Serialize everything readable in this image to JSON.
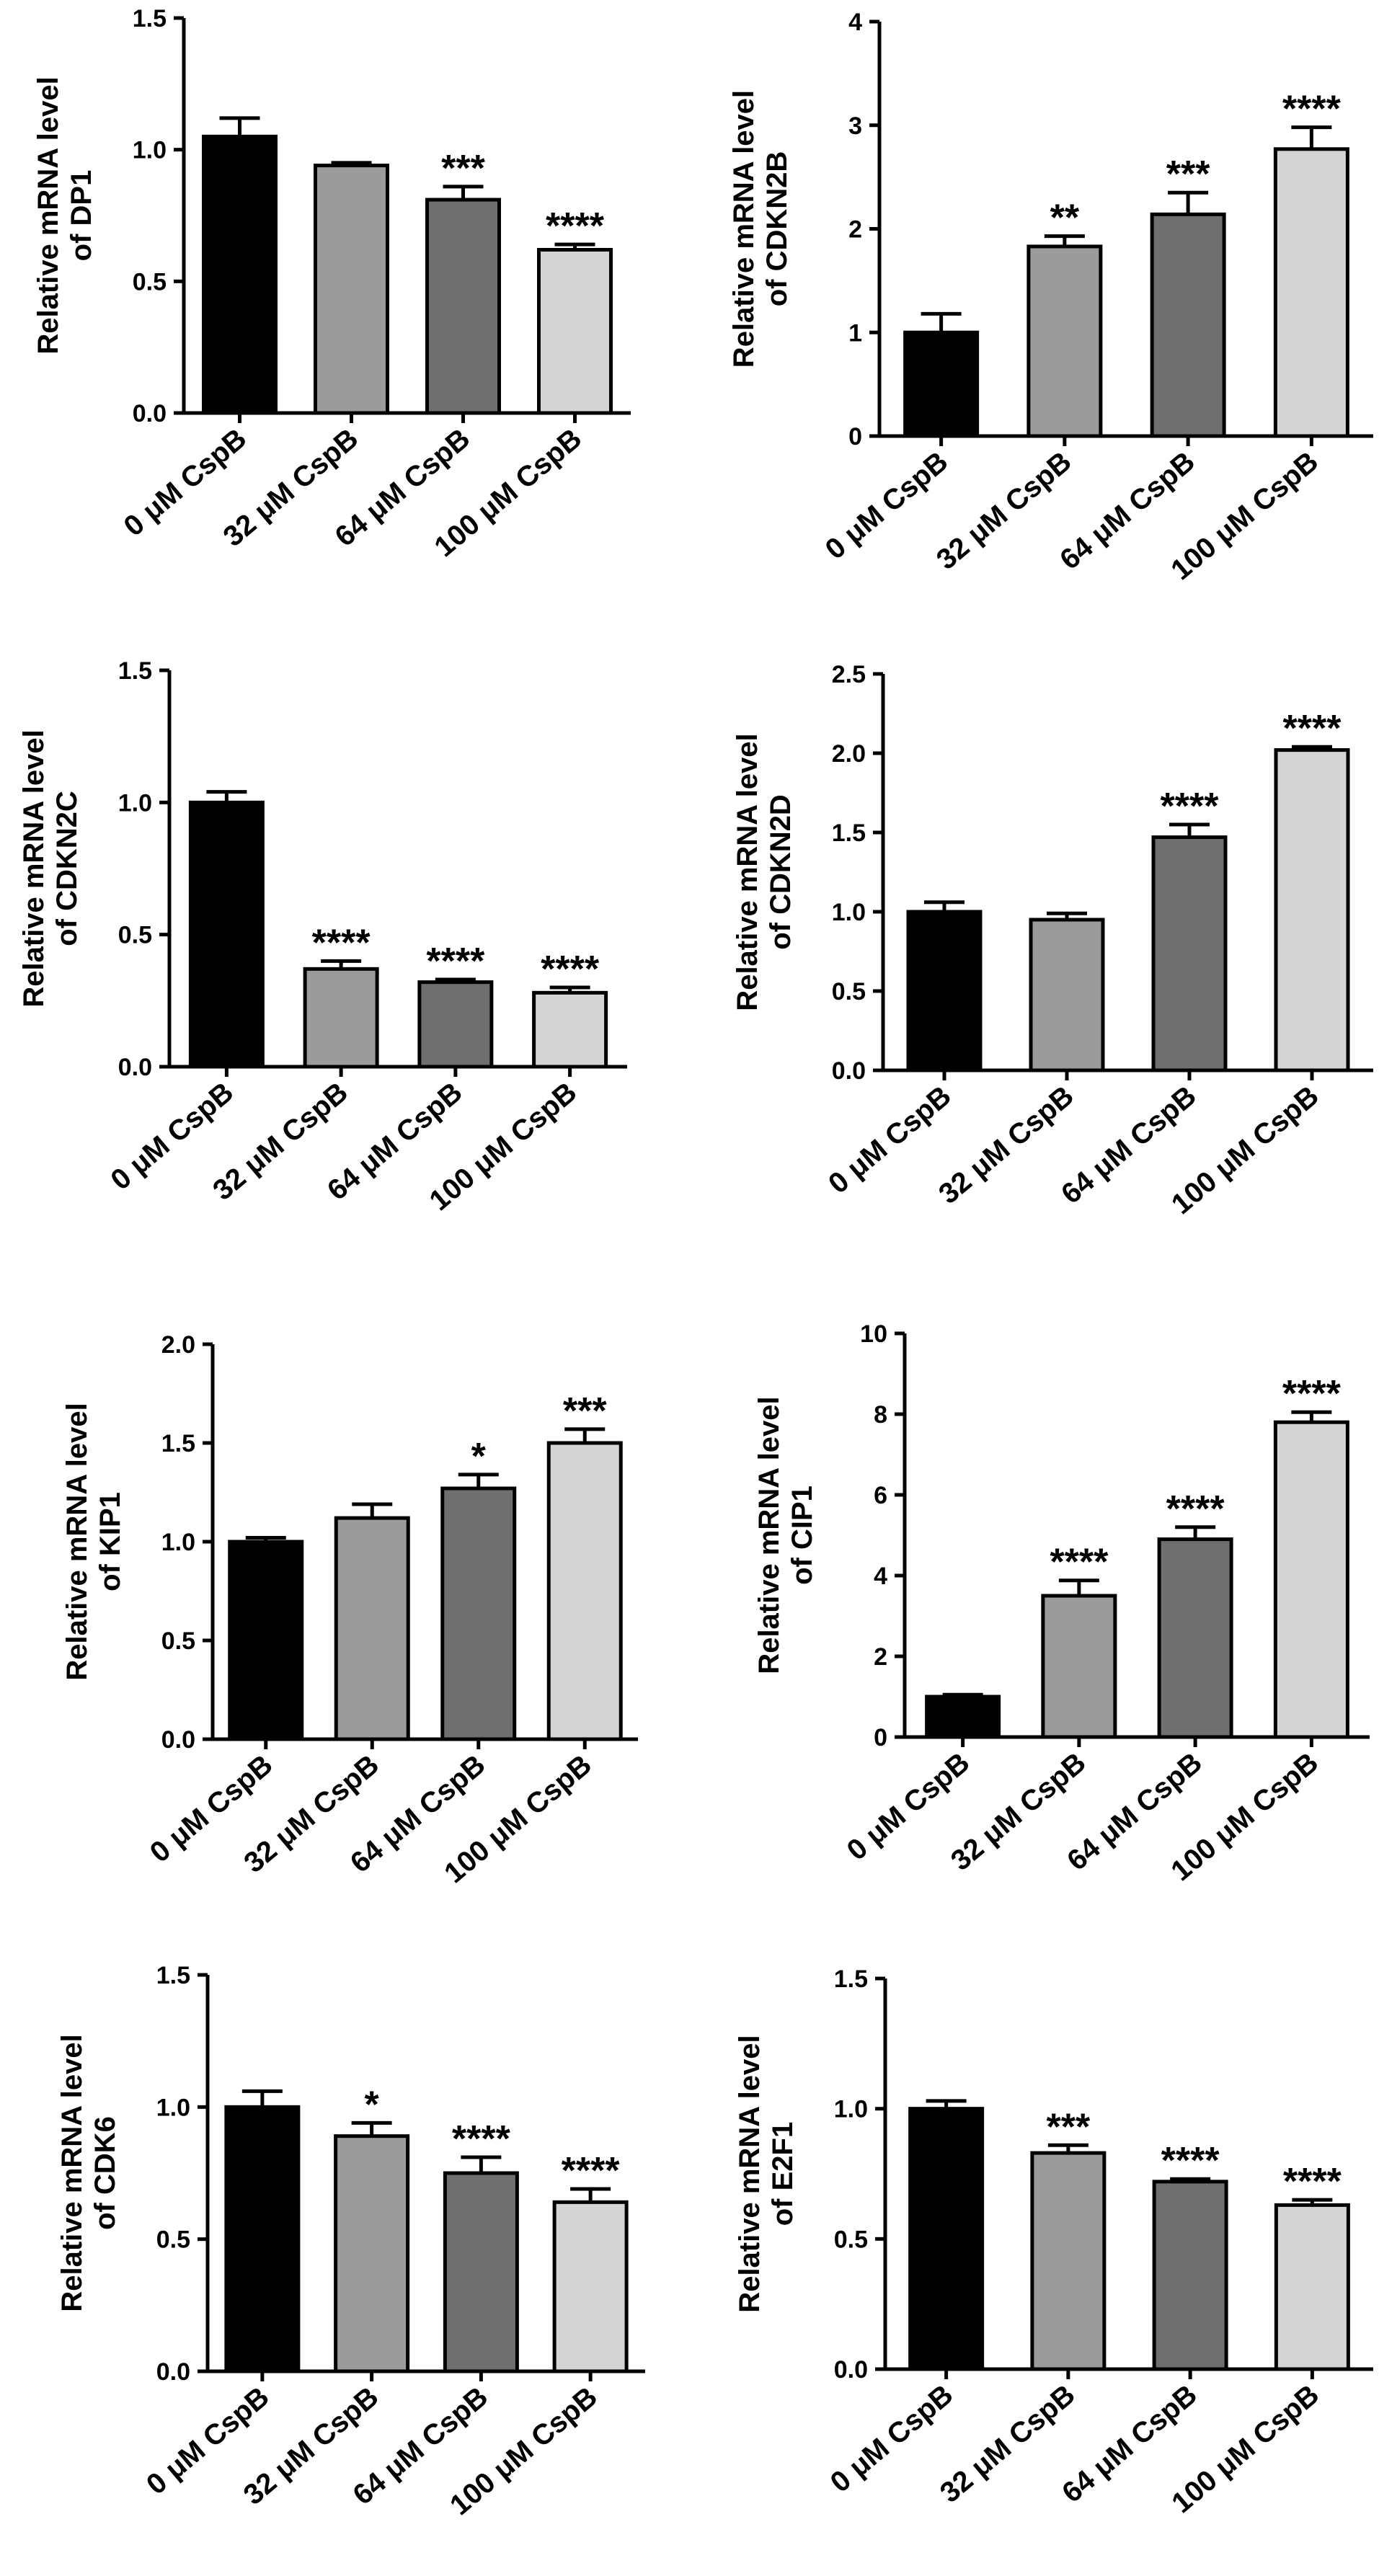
{
  "figure": {
    "panels": 8
  },
  "chart_data": [
    {
      "type": "bar",
      "title": "",
      "xlabel": "",
      "ylabel": [
        "Relative mRNA level",
        "of DP1"
      ],
      "categories": [
        "0 μM CspB",
        "32 μM CspB",
        "64 μM CspB",
        "100 μM CspB"
      ],
      "values": [
        1.05,
        0.94,
        0.81,
        0.62
      ],
      "errors": [
        0.07,
        0.01,
        0.05,
        0.02
      ],
      "significance": [
        "",
        "",
        "***",
        "****"
      ],
      "yticks": [
        "0.0",
        "0.5",
        "1.0",
        "1.5"
      ],
      "ylim": [
        0,
        1.5
      ],
      "colors": [
        "#000000",
        "#9b9b9b",
        "#6f6f6f",
        "#d4d4d4"
      ]
    },
    {
      "type": "bar",
      "title": "",
      "xlabel": "",
      "ylabel": [
        "Relative mRNA level",
        "of CDKN2B"
      ],
      "categories": [
        "0 μM CspB",
        "32 μM CspB",
        "64 μM CspB",
        "100 μM CspB"
      ],
      "values": [
        1.0,
        1.83,
        2.14,
        2.77
      ],
      "errors": [
        0.18,
        0.1,
        0.21,
        0.21
      ],
      "significance": [
        "",
        "**",
        "***",
        "****"
      ],
      "yticks": [
        "0",
        "1",
        "2",
        "3",
        "4"
      ],
      "ylim": [
        0,
        4
      ],
      "colors": [
        "#000000",
        "#9b9b9b",
        "#6f6f6f",
        "#d4d4d4"
      ]
    },
    {
      "type": "bar",
      "title": "",
      "xlabel": "",
      "ylabel": [
        "Relative mRNA level",
        "of CDKN2C"
      ],
      "categories": [
        "0 μM CspB",
        "32 μM CspB",
        "64 μM CspB",
        "100 μM CspB"
      ],
      "values": [
        1.0,
        0.37,
        0.32,
        0.28
      ],
      "errors": [
        0.04,
        0.03,
        0.01,
        0.02
      ],
      "significance": [
        "",
        "****",
        "****",
        "****"
      ],
      "yticks": [
        "0.0",
        "0.5",
        "1.0",
        "1.5"
      ],
      "ylim": [
        0,
        1.5
      ],
      "colors": [
        "#000000",
        "#9b9b9b",
        "#6f6f6f",
        "#d4d4d4"
      ]
    },
    {
      "type": "bar",
      "title": "",
      "xlabel": "",
      "ylabel": [
        "Relative mRNA level",
        "of CDKN2D"
      ],
      "categories": [
        "0 μM CspB",
        "32 μM CspB",
        "64 μM CspB",
        "100 μM CspB"
      ],
      "values": [
        1.0,
        0.95,
        1.47,
        2.02
      ],
      "errors": [
        0.06,
        0.04,
        0.08,
        0.02
      ],
      "significance": [
        "",
        "",
        "****",
        "****"
      ],
      "yticks": [
        "0.0",
        "0.5",
        "1.0",
        "1.5",
        "2.0",
        "2.5"
      ],
      "ylim": [
        0,
        2.5
      ],
      "colors": [
        "#000000",
        "#9b9b9b",
        "#6f6f6f",
        "#d4d4d4"
      ]
    },
    {
      "type": "bar",
      "title": "",
      "xlabel": "",
      "ylabel": [
        "Relative mRNA level",
        "of KIP1"
      ],
      "categories": [
        "0 μM CspB",
        "32 μM CspB",
        "64 μM CspB",
        "100 μM CspB"
      ],
      "values": [
        1.0,
        1.12,
        1.27,
        1.5
      ],
      "errors": [
        0.02,
        0.07,
        0.07,
        0.07
      ],
      "significance": [
        "",
        "",
        "*",
        "***"
      ],
      "yticks": [
        "0.0",
        "0.5",
        "1.0",
        "1.5",
        "2.0"
      ],
      "ylim": [
        0,
        2.0
      ],
      "colors": [
        "#000000",
        "#9b9b9b",
        "#6f6f6f",
        "#d4d4d4"
      ]
    },
    {
      "type": "bar",
      "title": "",
      "xlabel": "",
      "ylabel": [
        "Relative mRNA level",
        "of CIP1"
      ],
      "categories": [
        "0 μM CspB",
        "32 μM CspB",
        "64 μM CspB",
        "100 μM CspB"
      ],
      "values": [
        1.0,
        3.5,
        4.9,
        7.8
      ],
      "errors": [
        0.05,
        0.38,
        0.3,
        0.25
      ],
      "significance": [
        "",
        "****",
        "****",
        "****"
      ],
      "yticks": [
        "0",
        "2",
        "4",
        "6",
        "8",
        "10"
      ],
      "ylim": [
        0,
        10
      ],
      "colors": [
        "#000000",
        "#9b9b9b",
        "#6f6f6f",
        "#d4d4d4"
      ]
    },
    {
      "type": "bar",
      "title": "",
      "xlabel": "",
      "ylabel": [
        "Relative mRNA level",
        "of CDK6"
      ],
      "categories": [
        "0 μM CspB",
        "32 μM CspB",
        "64 μM CspB",
        "100 μM CspB"
      ],
      "values": [
        1.0,
        0.89,
        0.75,
        0.64
      ],
      "errors": [
        0.06,
        0.05,
        0.06,
        0.05
      ],
      "significance": [
        "",
        "*",
        "****",
        "****"
      ],
      "yticks": [
        "0.0",
        "0.5",
        "1.0",
        "1.5"
      ],
      "ylim": [
        0,
        1.5
      ],
      "colors": [
        "#000000",
        "#9b9b9b",
        "#6f6f6f",
        "#d4d4d4"
      ]
    },
    {
      "type": "bar",
      "title": "",
      "xlabel": "",
      "ylabel": [
        "Relative mRNA level",
        "of E2F1"
      ],
      "categories": [
        "0 μM CspB",
        "32 μM CspB",
        "64 μM CspB",
        "100 μM CspB"
      ],
      "values": [
        1.0,
        0.83,
        0.72,
        0.63
      ],
      "errors": [
        0.03,
        0.03,
        0.01,
        0.02
      ],
      "significance": [
        "",
        "***",
        "****",
        "****"
      ],
      "yticks": [
        "0.0",
        "0.5",
        "1.0",
        "1.5"
      ],
      "ylim": [
        0,
        1.5
      ],
      "colors": [
        "#000000",
        "#9b9b9b",
        "#6f6f6f",
        "#d4d4d4"
      ]
    }
  ]
}
